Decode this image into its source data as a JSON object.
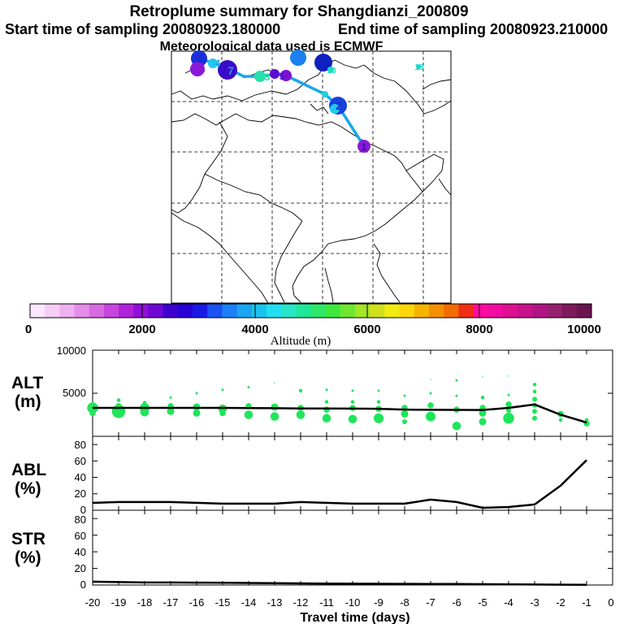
{
  "header": {
    "title": "Retroplume summary for Shangdianzi_200809",
    "start_label": "Start time of sampling 20080923.180000",
    "end_label": "End time of sampling 20080923.210000",
    "met_label": "Meteorological data used is ECMWF"
  },
  "map": {
    "track_color": "#1aa8e6",
    "labels": [
      {
        "text": "1",
        "color": "#3a0aa8"
      },
      {
        "text": "2",
        "color": "#1a2ec8"
      },
      {
        "text": "3",
        "color": "#23e0a0"
      },
      {
        "text": "4",
        "color": "#1aa8e6"
      },
      {
        "text": "5",
        "color": "#4a10c8"
      },
      {
        "text": "6",
        "color": "#1a30d8"
      },
      {
        "text": "7",
        "color": "#4080ff"
      },
      {
        "text": "8",
        "color": "#1020c0"
      },
      {
        "text": "9",
        "color": "#1a80f0"
      },
      {
        "text": "10",
        "color": "#19e0c0"
      },
      {
        "text": "18",
        "color": "#19d8d0"
      }
    ]
  },
  "colorbar": {
    "tick_labels": [
      "0",
      "2000",
      "4000",
      "6000",
      "8000",
      "10000"
    ],
    "label": "Altitude (m)",
    "colors": [
      "#fbe6fb",
      "#f6cdf6",
      "#efb0ef",
      "#e58de8",
      "#d76ae0",
      "#c645dc",
      "#b022da",
      "#9010d8",
      "#6e07d3",
      "#3d00cf",
      "#2800d8",
      "#1a1ae6",
      "#1b52f6",
      "#1c7ff6",
      "#1aa5f2",
      "#1ac3ee",
      "#20e0f0",
      "#2ae6c8",
      "#20e89a",
      "#2ee86a",
      "#3eea3e",
      "#70e630",
      "#a4e628",
      "#d0e01c",
      "#f0ec10",
      "#fcd60a",
      "#f6b400",
      "#f49000",
      "#f26c00",
      "#ef2e14",
      "#ff0aa0",
      "#f00ca0",
      "#de1090",
      "#c8128c",
      "#b01484",
      "#962070",
      "#7e1a5c",
      "#6a1450"
    ]
  },
  "axis": {
    "xlabel": "Travel time (days)",
    "xticks": [
      "-20",
      "-19",
      "-18",
      "-17",
      "-16",
      "-15",
      "-14",
      "-13",
      "-12",
      "-11",
      "-10",
      "-9",
      "-8",
      "-7",
      "-6",
      "-5",
      "-4",
      "-3",
      "-2",
      "-1",
      "0"
    ]
  },
  "chart_data": [
    {
      "type": "line",
      "panel": "ALT",
      "ylabel_line1": "ALT",
      "ylabel_line2": "(m)",
      "ylim": [
        0,
        10000
      ],
      "yticks": [
        "5000",
        "10000"
      ],
      "x": [
        -20,
        -19,
        -18,
        -17,
        -16,
        -15,
        -14,
        -13,
        -12,
        -11,
        -10,
        -9,
        -8,
        -7,
        -6,
        -5,
        -4,
        -3,
        -2,
        -1
      ],
      "series": [
        {
          "name": "mean altitude",
          "color": "#000000",
          "values": [
            3300,
            3300,
            3300,
            3300,
            3300,
            3300,
            3280,
            3260,
            3240,
            3230,
            3220,
            3200,
            3100,
            3080,
            3070,
            3060,
            3300,
            3700,
            2500,
            1600
          ]
        }
      ],
      "plume_color": "#1ee65a",
      "plume_points": [
        {
          "x": -20,
          "y": 3300,
          "s": 9
        },
        {
          "x": -20,
          "y": 3700,
          "s": 4
        },
        {
          "x": -20,
          "y": 2700,
          "s": 5
        },
        {
          "x": -19,
          "y": 2900,
          "s": 11
        },
        {
          "x": -19,
          "y": 3500,
          "s": 5
        },
        {
          "x": -19,
          "y": 4200,
          "s": 3
        },
        {
          "x": -18,
          "y": 3300,
          "s": 8
        },
        {
          "x": -18,
          "y": 2800,
          "s": 7
        },
        {
          "x": -18,
          "y": 3900,
          "s": 3
        },
        {
          "x": -17,
          "y": 3500,
          "s": 5
        },
        {
          "x": -17,
          "y": 2900,
          "s": 6
        },
        {
          "x": -17,
          "y": 4500,
          "s": 2
        },
        {
          "x": -16,
          "y": 3400,
          "s": 6
        },
        {
          "x": -16,
          "y": 2700,
          "s": 6
        },
        {
          "x": -16,
          "y": 5000,
          "s": 2
        },
        {
          "x": -15,
          "y": 3200,
          "s": 7
        },
        {
          "x": -15,
          "y": 2700,
          "s": 5
        },
        {
          "x": -15,
          "y": 5400,
          "s": 2
        },
        {
          "x": -14,
          "y": 3500,
          "s": 5
        },
        {
          "x": -14,
          "y": 2500,
          "s": 7
        },
        {
          "x": -14,
          "y": 5700,
          "s": 2
        },
        {
          "x": -13,
          "y": 3400,
          "s": 6
        },
        {
          "x": -13,
          "y": 2300,
          "s": 7
        },
        {
          "x": -13,
          "y": 6200,
          "s": 1
        },
        {
          "x": -12,
          "y": 3300,
          "s": 5
        },
        {
          "x": -12,
          "y": 2500,
          "s": 7
        },
        {
          "x": -12,
          "y": 5300,
          "s": 3
        },
        {
          "x": -11,
          "y": 3100,
          "s": 5
        },
        {
          "x": -11,
          "y": 2100,
          "s": 7
        },
        {
          "x": -11,
          "y": 4000,
          "s": 3
        },
        {
          "x": -11,
          "y": 5400,
          "s": 2
        },
        {
          "x": -10,
          "y": 3300,
          "s": 5
        },
        {
          "x": -10,
          "y": 2000,
          "s": 7
        },
        {
          "x": -10,
          "y": 4000,
          "s": 3
        },
        {
          "x": -10,
          "y": 5300,
          "s": 2
        },
        {
          "x": -9,
          "y": 3200,
          "s": 5
        },
        {
          "x": -9,
          "y": 2100,
          "s": 8
        },
        {
          "x": -9,
          "y": 4000,
          "s": 3
        },
        {
          "x": -9,
          "y": 5300,
          "s": 2
        },
        {
          "x": -8,
          "y": 3300,
          "s": 5
        },
        {
          "x": -8,
          "y": 2600,
          "s": 6
        },
        {
          "x": -8,
          "y": 1700,
          "s": 4
        },
        {
          "x": -8,
          "y": 4700,
          "s": 2
        },
        {
          "x": -7,
          "y": 3600,
          "s": 5
        },
        {
          "x": -7,
          "y": 2300,
          "s": 8
        },
        {
          "x": -7,
          "y": 5000,
          "s": 2
        },
        {
          "x": -7,
          "y": 6600,
          "s": 1
        },
        {
          "x": -6,
          "y": 3100,
          "s": 5
        },
        {
          "x": -6,
          "y": 1200,
          "s": 7
        },
        {
          "x": -6,
          "y": 4700,
          "s": 2
        },
        {
          "x": -6,
          "y": 6500,
          "s": 2
        },
        {
          "x": -5,
          "y": 3300,
          "s": 5
        },
        {
          "x": -5,
          "y": 2700,
          "s": 6
        },
        {
          "x": -5,
          "y": 1700,
          "s": 6
        },
        {
          "x": -5,
          "y": 4500,
          "s": 3
        },
        {
          "x": -5,
          "y": 6900,
          "s": 1
        },
        {
          "x": -4,
          "y": 3700,
          "s": 5
        },
        {
          "x": -4,
          "y": 2100,
          "s": 9
        },
        {
          "x": -4,
          "y": 3000,
          "s": 4
        },
        {
          "x": -4,
          "y": 4800,
          "s": 2
        },
        {
          "x": -4,
          "y": 7000,
          "s": 1
        },
        {
          "x": -3,
          "y": 4300,
          "s": 4
        },
        {
          "x": -3,
          "y": 3600,
          "s": 4
        },
        {
          "x": -3,
          "y": 2900,
          "s": 4
        },
        {
          "x": -3,
          "y": 2100,
          "s": 4
        },
        {
          "x": -3,
          "y": 5200,
          "s": 3
        },
        {
          "x": -3,
          "y": 6000,
          "s": 3
        },
        {
          "x": -2,
          "y": 2600,
          "s": 5
        },
        {
          "x": -2,
          "y": 1900,
          "s": 3
        },
        {
          "x": -1,
          "y": 1500,
          "s": 5
        },
        {
          "x": -1,
          "y": 1900,
          "s": 3
        }
      ]
    },
    {
      "type": "line",
      "panel": "ABL",
      "ylabel_line1": "ABL",
      "ylabel_line2": "(%)",
      "ylim": [
        0,
        90
      ],
      "yticks": [
        "0",
        "20",
        "40",
        "60",
        "80"
      ],
      "x": [
        -20,
        -19,
        -18,
        -17,
        -16,
        -15,
        -14,
        -13,
        -12,
        -11,
        -10,
        -9,
        -8,
        -7,
        -6,
        -5,
        -4,
        -3,
        -2,
        -1
      ],
      "series": [
        {
          "name": "ABL fraction",
          "color": "#000000",
          "values": [
            9,
            10,
            10,
            10,
            9,
            8,
            8,
            8,
            10,
            9,
            8,
            8,
            8,
            13,
            10,
            3,
            4,
            7,
            30,
            61
          ]
        }
      ]
    },
    {
      "type": "line",
      "panel": "STR",
      "ylabel_line1": "STR",
      "ylabel_line2": "(%)",
      "ylim": [
        0,
        90
      ],
      "yticks": [
        "0",
        "20",
        "40",
        "60",
        "80"
      ],
      "x": [
        -20,
        -19,
        -18,
        -17,
        -16,
        -15,
        -14,
        -13,
        -12,
        -11,
        -10,
        -9,
        -8,
        -7,
        -6,
        -5,
        -4,
        -3,
        -2,
        -1
      ],
      "series": [
        {
          "name": "stratosphere fraction",
          "color": "#000000",
          "values": [
            4,
            3.5,
            3,
            3,
            2.8,
            2.6,
            2.4,
            2.2,
            2,
            1.8,
            1.6,
            1.5,
            1.4,
            1.3,
            1.2,
            1,
            0.8,
            0.6,
            0.4,
            0.2
          ]
        }
      ]
    }
  ]
}
